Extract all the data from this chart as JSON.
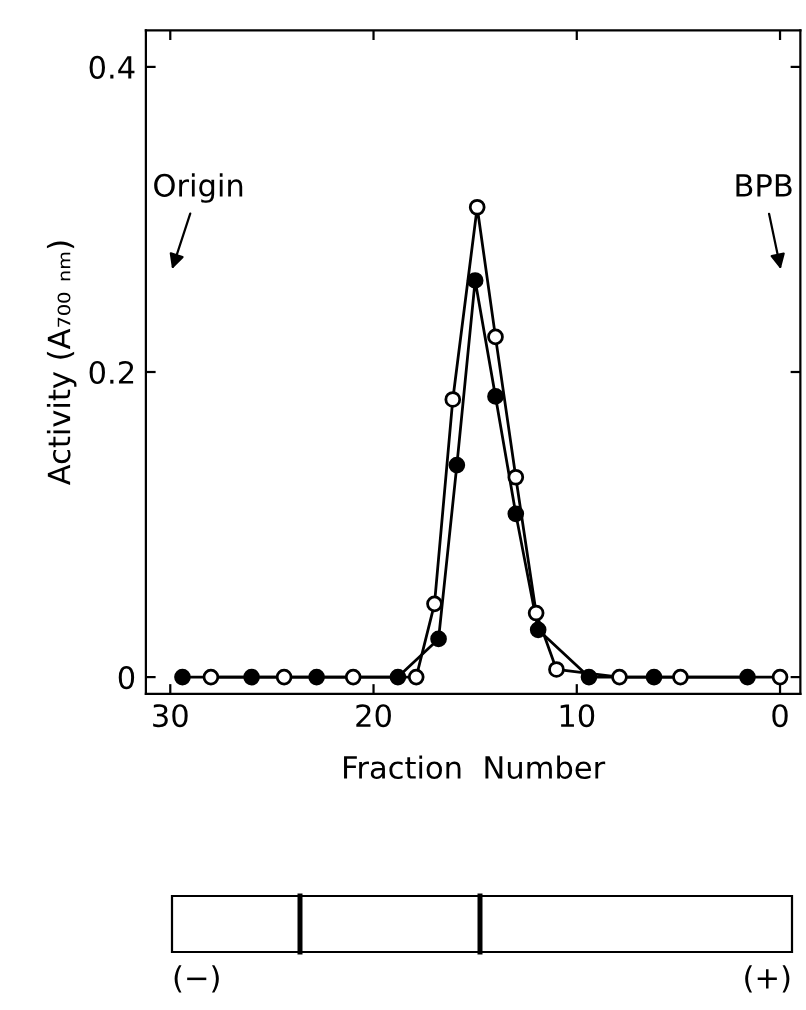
{
  "chart_data": {
    "type": "line",
    "xlabel": "Fraction  Number",
    "ylabel": "Activity (A₇₀₀ ₙₘ)",
    "series": [
      {
        "color": "#000000",
        "marker": "circle",
        "x": [
          29.4,
          26,
          22.8,
          18.8,
          16.8,
          15.9,
          15.0,
          14.0,
          13.0,
          11.9,
          9.4,
          6.2,
          1.6
        ],
        "values": [
          0,
          0,
          0,
          0,
          0.025,
          0.139,
          0.26,
          0.184,
          0.107,
          0.031,
          0,
          0,
          0
        ]
      },
      {
        "color": "#000000",
        "marker": "circle",
        "x": [
          28,
          24.4,
          21,
          17.9,
          17,
          16.1,
          14.9,
          14.0,
          13.0,
          12.0,
          11.0,
          7.9,
          4.9,
          0
        ],
        "values": [
          0,
          0,
          0,
          0,
          0.048,
          0.182,
          0.308,
          0.223,
          0.131,
          0.042,
          0.005,
          0,
          0,
          0
        ]
      }
    ],
    "xlim": [
      31.2,
      -1
    ],
    "xticks": [
      30,
      20,
      10,
      0
    ],
    "ylim": [
      -0.011,
      0.424
    ],
    "yticks": [
      0,
      0.2,
      0.4
    ],
    "grid": false,
    "line_style": "solid",
    "annotations": [
      "Origin",
      "BPB",
      "(−)",
      "(+)"
    ]
  }
}
